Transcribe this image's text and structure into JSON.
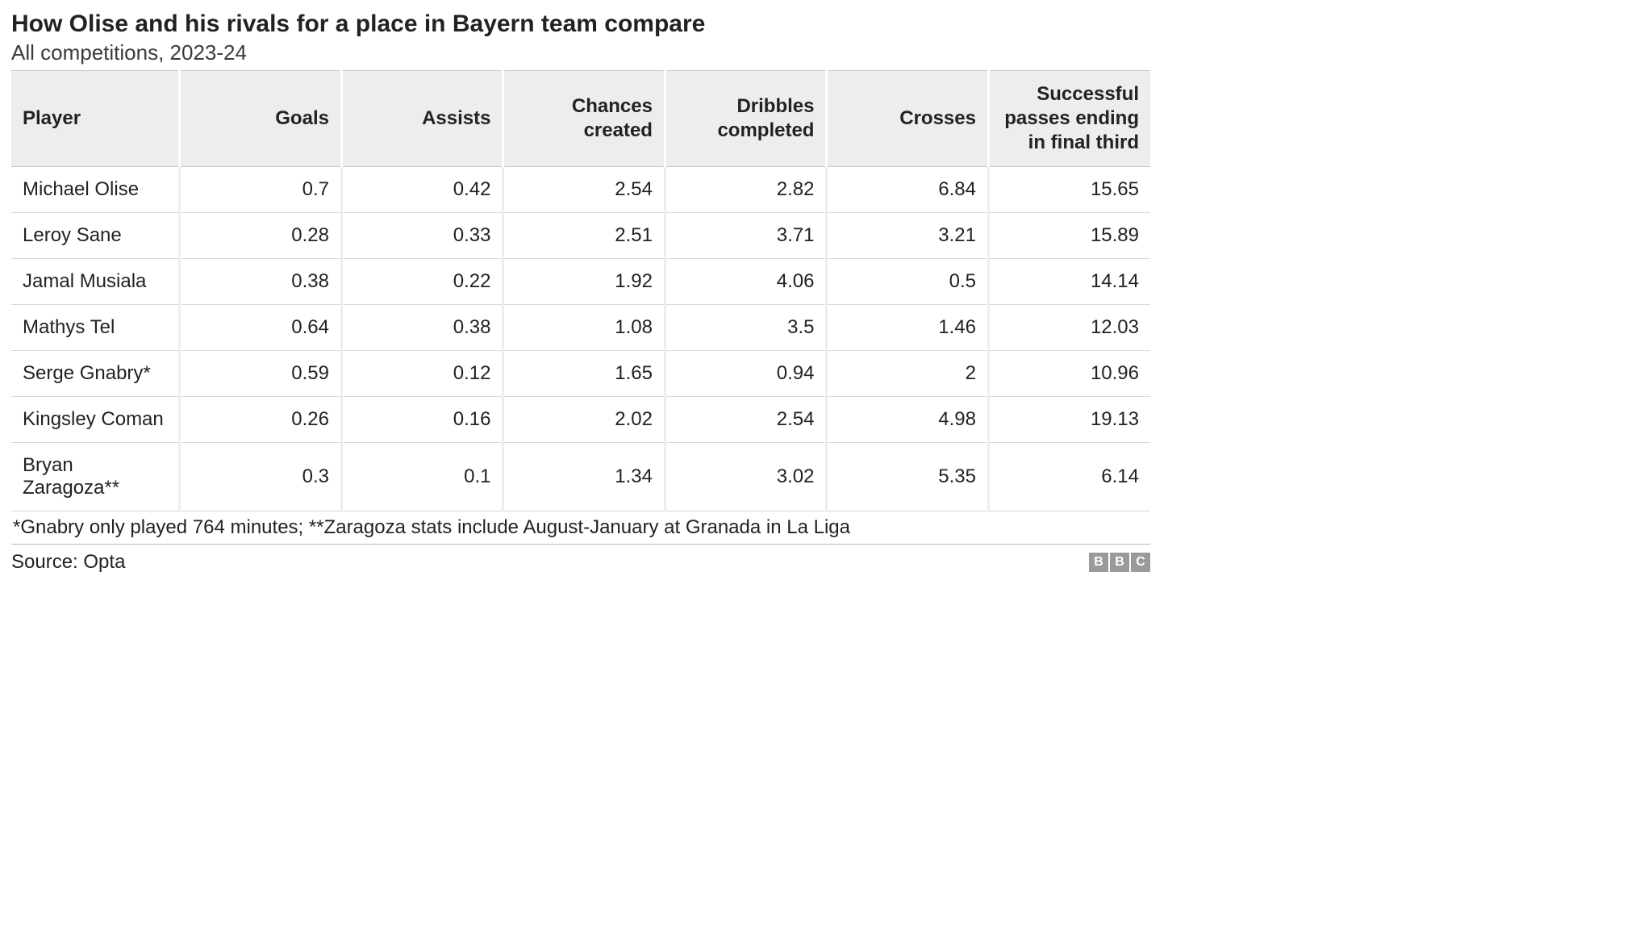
{
  "title": "How Olise and his rivals for a place in Bayern team compare",
  "subtitle": "All competitions, 2023-24",
  "table": {
    "type": "table",
    "columns": [
      {
        "key": "player",
        "label": "Player",
        "align": "left"
      },
      {
        "key": "goals",
        "label": "Goals",
        "align": "right"
      },
      {
        "key": "assists",
        "label": "Assists",
        "align": "right"
      },
      {
        "key": "chances",
        "label": "Chances created",
        "align": "right"
      },
      {
        "key": "dribbles",
        "label": "Dribbles completed",
        "align": "right"
      },
      {
        "key": "crosses",
        "label": "Crosses",
        "align": "right"
      },
      {
        "key": "passes",
        "label": "Successful passes ending in final third",
        "align": "right"
      }
    ],
    "rows": [
      {
        "player": "Michael Olise",
        "goals": "0.7",
        "assists": "0.42",
        "chances": "2.54",
        "dribbles": "2.82",
        "crosses": "6.84",
        "passes": "15.65"
      },
      {
        "player": "Leroy Sane",
        "goals": "0.28",
        "assists": "0.33",
        "chances": "2.51",
        "dribbles": "3.71",
        "crosses": "3.21",
        "passes": "15.89"
      },
      {
        "player": "Jamal Musiala",
        "goals": "0.38",
        "assists": "0.22",
        "chances": "1.92",
        "dribbles": "4.06",
        "crosses": "0.5",
        "passes": "14.14"
      },
      {
        "player": "Mathys Tel",
        "goals": "0.64",
        "assists": "0.38",
        "chances": "1.08",
        "dribbles": "3.5",
        "crosses": "1.46",
        "passes": "12.03"
      },
      {
        "player": "Serge Gnabry*",
        "goals": "0.59",
        "assists": "0.12",
        "chances": "1.65",
        "dribbles": "0.94",
        "crosses": "2",
        "passes": "10.96"
      },
      {
        "player": "Kingsley Coman",
        "goals": "0.26",
        "assists": "0.16",
        "chances": "2.02",
        "dribbles": "2.54",
        "crosses": "4.98",
        "passes": "19.13"
      },
      {
        "player": "Bryan Zaragoza**",
        "goals": "0.3",
        "assists": "0.1",
        "chances": "1.34",
        "dribbles": "3.02",
        "crosses": "5.35",
        "passes": "6.14"
      }
    ],
    "header_bg": "#ededed",
    "row_border_color": "#d9d9d9",
    "col_gap_color": "#ededed",
    "header_border_color": "#c9c9c9",
    "background_color": "#ffffff",
    "text_color": "#222222",
    "header_fontweight": 700,
    "body_fontsize": 24,
    "header_fontsize": 24
  },
  "footnote": "*Gnabry only played 764 minutes; **Zaragoza stats include August-January at Granada in La Liga",
  "source": "Source: Opta",
  "logo": {
    "letters": [
      "B",
      "B",
      "C"
    ],
    "block_bg": "#9a9a9a",
    "block_fg": "#ffffff"
  }
}
